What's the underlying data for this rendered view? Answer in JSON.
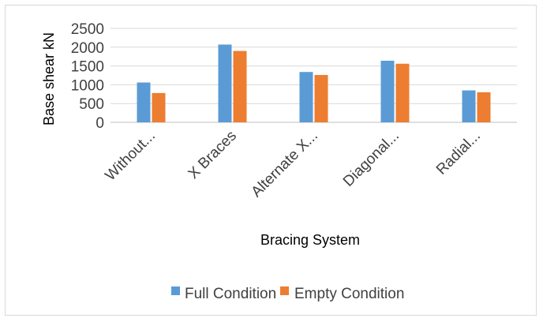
{
  "chart_data": {
    "type": "bar",
    "categories": [
      "Without...",
      "X Braces",
      "Alternate X...",
      "Diagonal...",
      "Radial..."
    ],
    "series": [
      {
        "name": "Full Condition",
        "values": [
          1060,
          2070,
          1340,
          1640,
          850
        ],
        "color": "#5b9bd5"
      },
      {
        "name": "Empty Condition",
        "values": [
          780,
          1900,
          1260,
          1560,
          800
        ],
        "color": "#ed7d31"
      }
    ],
    "yticks": [
      "0",
      "500",
      "1000",
      "1500",
      "2000",
      "2500"
    ],
    "ylim": [
      0,
      2500
    ],
    "xlabel": "Bracing System",
    "ylabel": "Base shear kN",
    "grid": true,
    "legend": "bottom"
  }
}
